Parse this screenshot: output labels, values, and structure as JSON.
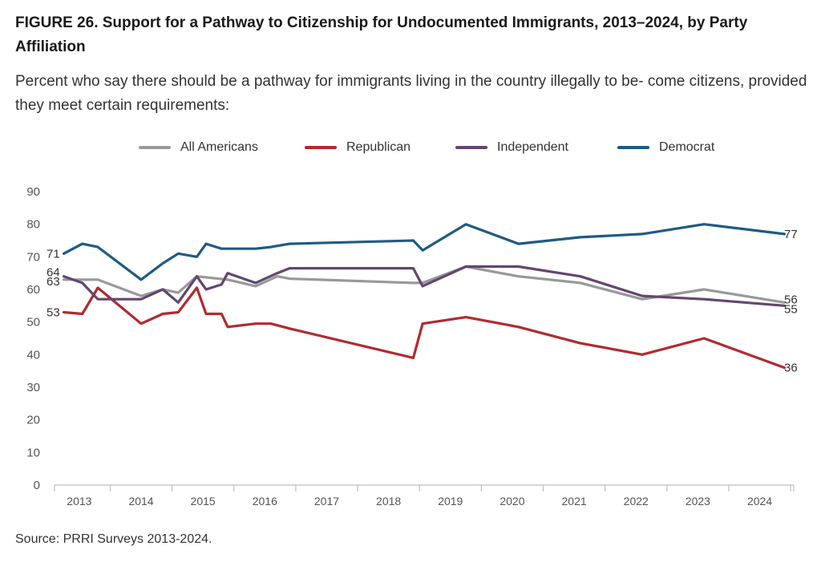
{
  "title": "FIGURE 26.  Support for a Pathway to Citizenship for Undocumented Immigrants, 2013–2024, by Party Affiliation",
  "subtitle": "Percent who say there should be a pathway for immigrants living in the country illegally to be- come citizens, provided they meet certain requirements:",
  "source": "Source: PRRI Surveys 2013-2024.",
  "legend": [
    {
      "label": "All Americans",
      "color": "#999999"
    },
    {
      "label": "Republican",
      "color": "#b22a2e"
    },
    {
      "label": "Independent",
      "color": "#62476f"
    },
    {
      "label": "Democrat",
      "color": "#1e5b85"
    }
  ],
  "chart_data": {
    "type": "line",
    "ylim": [
      0,
      90
    ],
    "yticks": [
      0,
      10,
      20,
      30,
      40,
      50,
      60,
      70,
      80,
      90
    ],
    "xlim": [
      2012.6,
      2024.55
    ],
    "xtick_labels": [
      "2013",
      "2014",
      "2015",
      "2016",
      "2017",
      "2018",
      "2019",
      "2020",
      "2021",
      "2022",
      "2023",
      "2024"
    ],
    "grid": false,
    "legend_position": "top",
    "series": [
      {
        "name": "All Americans",
        "color": "#999999",
        "start_label": "63",
        "end_label": "56",
        "x": [
          2012.75,
          2013.05,
          2013.3,
          2014.0,
          2014.35,
          2014.6,
          2014.9,
          2015.4,
          2015.85,
          2016.2,
          2016.4,
          2018.4,
          2018.55,
          2019.25,
          2020.1,
          2021.1,
          2022.1,
          2023.1,
          2024.4
        ],
        "y": [
          63,
          63,
          63,
          58,
          60,
          59,
          64,
          63,
          61,
          64,
          63.3,
          62,
          62,
          67,
          64,
          62,
          57,
          60,
          56
        ]
      },
      {
        "name": "Republican",
        "color": "#b22a2e",
        "start_label": "53",
        "end_label": "36",
        "x": [
          2012.75,
          2013.05,
          2013.3,
          2014.0,
          2014.35,
          2014.6,
          2014.9,
          2015.05,
          2015.3,
          2015.4,
          2015.85,
          2016.1,
          2016.4,
          2018.4,
          2018.55,
          2019.25,
          2020.1,
          2021.1,
          2022.1,
          2023.1,
          2024.4
        ],
        "y": [
          53,
          52.5,
          60.5,
          49.5,
          52.5,
          53,
          60.5,
          52.5,
          52.5,
          48.5,
          49.5,
          49.5,
          48,
          39,
          49.5,
          51.5,
          48.5,
          43.5,
          40,
          45,
          36
        ]
      },
      {
        "name": "Independent",
        "color": "#62476f",
        "start_label": "64",
        "end_label": "55",
        "x": [
          2012.75,
          2013.05,
          2013.3,
          2014.0,
          2014.35,
          2014.6,
          2014.9,
          2015.05,
          2015.3,
          2015.4,
          2015.85,
          2016.2,
          2016.4,
          2018.4,
          2018.55,
          2019.25,
          2020.1,
          2021.1,
          2022.1,
          2023.1,
          2024.4
        ],
        "y": [
          64,
          62,
          57,
          57,
          60,
          56,
          64,
          60,
          61.5,
          65,
          62,
          65,
          66.5,
          66.5,
          61,
          67,
          67,
          64,
          58,
          57,
          55
        ]
      },
      {
        "name": "Democrat",
        "color": "#1e5b85",
        "start_label": "71",
        "end_label": "77",
        "x": [
          2012.75,
          2013.05,
          2013.3,
          2014.0,
          2014.35,
          2014.6,
          2014.9,
          2015.05,
          2015.3,
          2015.4,
          2015.85,
          2016.1,
          2016.4,
          2018.4,
          2018.55,
          2019.25,
          2020.1,
          2021.1,
          2022.1,
          2023.1,
          2024.4
        ],
        "y": [
          71,
          74,
          73,
          63,
          68,
          71,
          70,
          74,
          72.5,
          72.5,
          72.5,
          73,
          74,
          75,
          72,
          80,
          74,
          76,
          77,
          80,
          77
        ]
      }
    ]
  }
}
